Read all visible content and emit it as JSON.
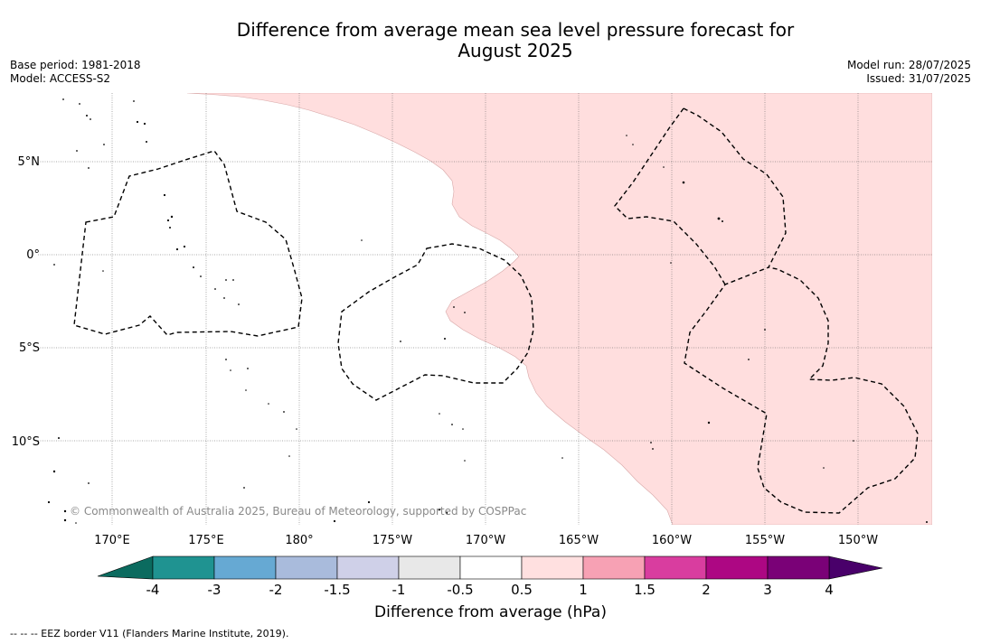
{
  "title_line1": "Difference from average mean sea level pressure forecast for",
  "title_line2": "August 2025",
  "base_period": "Base period: 1981-2018",
  "model": "Model: ACCESS-S2",
  "model_run": "Model run: 28/07/2025",
  "issued": "Issued: 31/07/2025",
  "lat_labels": [
    "5°N",
    "0°",
    "5°S",
    "10°S"
  ],
  "lon_labels": [
    "170°E",
    "175°E",
    "180°",
    "175°W",
    "170°W",
    "165°W",
    "160°W",
    "155°W",
    "150°W"
  ],
  "copyright": "© Commonwealth of Australia 2025, Bureau of Meteorology, supported by COSPPac",
  "colorbar": {
    "title": "Difference from average (hPa)",
    "ticks": [
      "-4",
      "-3",
      "-2",
      "-1.5",
      "-1",
      "-0.5",
      "0.5",
      "1",
      "1.5",
      "2",
      "3",
      "4"
    ],
    "colors": [
      "#1f9391",
      "#66a9d3",
      "#a9bbdc",
      "#cfd0e8",
      "#e8e8e8",
      "#ffffff",
      "#ffe0e0",
      "#f7a1b4",
      "#d93d9f",
      "#ad0783",
      "#7a0177"
    ],
    "under_color": "#0b6b5f",
    "over_color": "#49006a"
  },
  "legend_line": "--  --  -- EEZ border V11 (Flanders Marine Institute, 2019).",
  "anomaly_fill": "#ffdede"
}
